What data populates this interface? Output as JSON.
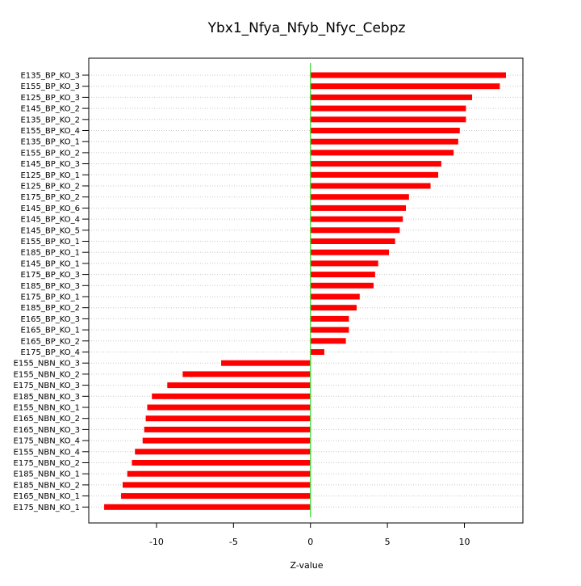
{
  "chart_data": {
    "type": "bar",
    "orientation": "horizontal",
    "title": "Ybx1_Nfya_Nfyb_Nfyc_Cebpz",
    "xlabel": "Z-value",
    "ylabel": "",
    "xlim": [
      -14.4,
      13.8
    ],
    "xticks": [
      -10,
      -5,
      0,
      5,
      10
    ],
    "xtick_labels": [
      "-10",
      "-5",
      "0",
      "5",
      "10"
    ],
    "zero_line": 0,
    "grid": "horizontal dotted lines at each category",
    "legend": "none",
    "colors": {
      "bar": "#ff0000",
      "zero_line": "#33dd33",
      "grid": "#c8c8c8",
      "axes": "#000000"
    },
    "categories": [
      "E135_BP_KO_3",
      "E155_BP_KO_3",
      "E125_BP_KO_3",
      "E145_BP_KO_2",
      "E135_BP_KO_2",
      "E155_BP_KO_4",
      "E135_BP_KO_1",
      "E155_BP_KO_2",
      "E145_BP_KO_3",
      "E125_BP_KO_1",
      "E125_BP_KO_2",
      "E175_BP_KO_2",
      "E145_BP_KO_6",
      "E145_BP_KO_4",
      "E145_BP_KO_5",
      "E155_BP_KO_1",
      "E185_BP_KO_1",
      "E145_BP_KO_1",
      "E175_BP_KO_3",
      "E185_BP_KO_3",
      "E175_BP_KO_1",
      "E185_BP_KO_2",
      "E165_BP_KO_3",
      "E165_BP_KO_1",
      "E165_BP_KO_2",
      "E175_BP_KO_4",
      "E155_NBN_KO_3",
      "E155_NBN_KO_2",
      "E175_NBN_KO_3",
      "E185_NBN_KO_3",
      "E155_NBN_KO_1",
      "E165_NBN_KO_2",
      "E165_NBN_KO_3",
      "E175_NBN_KO_4",
      "E155_NBN_KO_4",
      "E175_NBN_KO_2",
      "E185_NBN_KO_1",
      "E185_NBN_KO_2",
      "E165_NBN_KO_1",
      "E175_NBN_KO_1"
    ],
    "values": [
      12.7,
      12.3,
      10.5,
      10.1,
      10.1,
      9.7,
      9.6,
      9.3,
      8.5,
      8.3,
      7.8,
      6.4,
      6.2,
      6.0,
      5.8,
      5.5,
      5.1,
      4.4,
      4.2,
      4.1,
      3.2,
      3.0,
      2.5,
      2.5,
      2.3,
      0.9,
      -5.8,
      -8.3,
      -9.3,
      -10.3,
      -10.6,
      -10.7,
      -10.8,
      -10.9,
      -11.4,
      -11.6,
      -11.9,
      -12.2,
      -12.3,
      -13.4
    ]
  }
}
